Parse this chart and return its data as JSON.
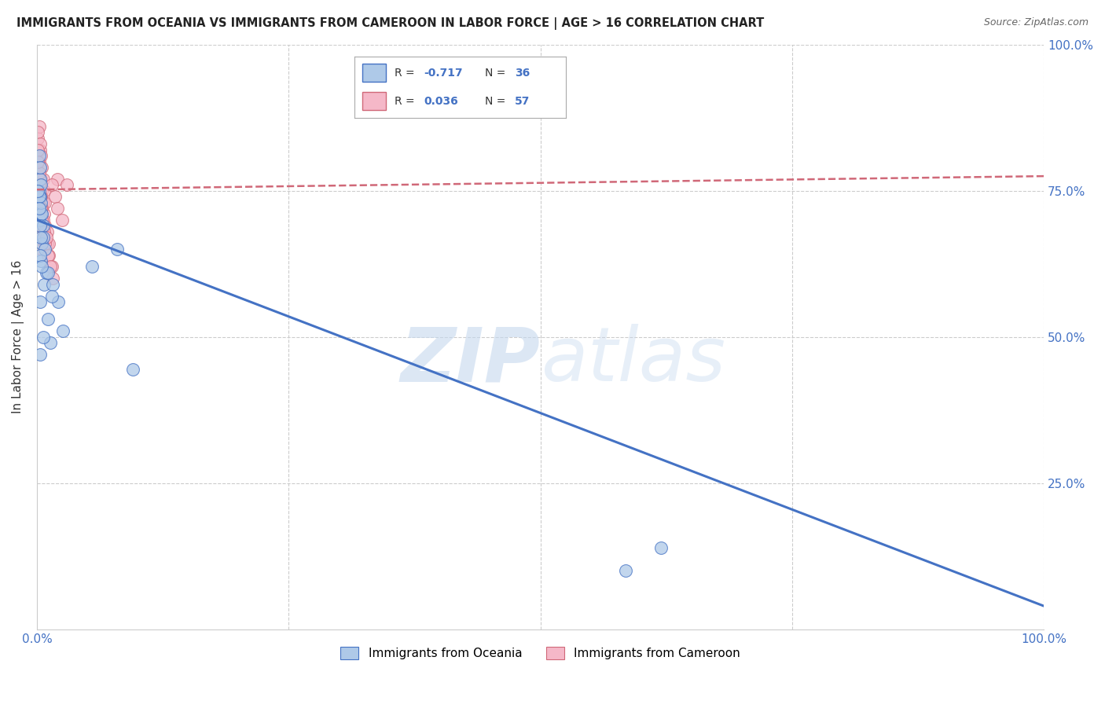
{
  "title": "IMMIGRANTS FROM OCEANIA VS IMMIGRANTS FROM CAMEROON IN LABOR FORCE | AGE > 16 CORRELATION CHART",
  "source": "Source: ZipAtlas.com",
  "ylabel": "In Labor Force | Age > 16",
  "legend_label_blue": "Immigrants from Oceania",
  "legend_label_pink": "Immigrants from Cameroon",
  "blue_R": -0.717,
  "blue_N": 36,
  "pink_R": 0.036,
  "pink_N": 57,
  "blue_color": "#aec9e8",
  "pink_color": "#f5b8c8",
  "blue_line_color": "#4472c4",
  "pink_line_color": "#d06878",
  "blue_scatter": {
    "x": [
      0.002,
      0.003,
      0.004,
      0.002,
      0.003,
      0.005,
      0.004,
      0.006,
      0.007,
      0.003,
      0.009,
      0.011,
      0.013,
      0.016,
      0.021,
      0.026,
      0.002,
      0.004,
      0.003,
      0.005,
      0.006,
      0.008,
      0.011,
      0.015,
      0.004,
      0.003,
      0.002,
      0.004,
      0.003,
      0.005,
      0.055,
      0.08,
      0.001,
      0.002,
      0.003,
      0.006
    ],
    "y": [
      0.7,
      0.74,
      0.71,
      0.75,
      0.77,
      0.66,
      0.63,
      0.69,
      0.59,
      0.56,
      0.61,
      0.53,
      0.49,
      0.59,
      0.56,
      0.51,
      0.81,
      0.76,
      0.79,
      0.71,
      0.67,
      0.65,
      0.61,
      0.57,
      0.73,
      0.69,
      0.74,
      0.67,
      0.64,
      0.62,
      0.62,
      0.65,
      0.75,
      0.72,
      0.47,
      0.5
    ]
  },
  "pink_scatter": {
    "x": [
      0.001,
      0.002,
      0.003,
      0.001,
      0.002,
      0.003,
      0.004,
      0.001,
      0.002,
      0.003,
      0.005,
      0.006,
      0.007,
      0.008,
      0.01,
      0.012,
      0.015,
      0.02,
      0.003,
      0.004,
      0.002,
      0.001,
      0.003,
      0.004,
      0.005,
      0.006,
      0.001,
      0.002,
      0.003,
      0.004,
      0.005,
      0.007,
      0.008,
      0.01,
      0.012,
      0.015,
      0.002,
      0.003,
      0.001,
      0.004,
      0.005,
      0.006,
      0.002,
      0.001,
      0.003,
      0.007,
      0.008,
      0.004,
      0.005,
      0.009,
      0.011,
      0.013,
      0.016,
      0.018,
      0.02,
      0.025,
      0.03
    ],
    "y": [
      0.78,
      0.8,
      0.82,
      0.76,
      0.74,
      0.72,
      0.7,
      0.84,
      0.86,
      0.68,
      0.75,
      0.73,
      0.71,
      0.69,
      0.66,
      0.64,
      0.62,
      0.77,
      0.79,
      0.77,
      0.75,
      0.85,
      0.83,
      0.81,
      0.79,
      0.77,
      0.73,
      0.71,
      0.69,
      0.67,
      0.65,
      0.75,
      0.73,
      0.68,
      0.66,
      0.76,
      0.78,
      0.76,
      0.82,
      0.74,
      0.72,
      0.7,
      0.76,
      0.8,
      0.74,
      0.68,
      0.66,
      0.72,
      0.7,
      0.67,
      0.64,
      0.62,
      0.6,
      0.74,
      0.72,
      0.7,
      0.76
    ]
  },
  "blue_outliers": {
    "x": [
      0.62,
      0.585,
      0.095
    ],
    "y": [
      0.14,
      0.1,
      0.445
    ]
  },
  "blue_line": {
    "x0": 0.0,
    "y0": 0.7,
    "x1": 1.0,
    "y1": 0.04
  },
  "pink_line": {
    "x0": 0.0,
    "y0": 0.752,
    "x1": 1.0,
    "y1": 0.775
  },
  "xlim": [
    0.0,
    1.0
  ],
  "ylim": [
    0.0,
    1.0
  ],
  "ytick_right_vals": [
    0.25,
    0.5,
    0.75,
    1.0
  ],
  "ytick_right_labels": [
    "25.0%",
    "50.0%",
    "75.0%",
    "100.0%"
  ],
  "xtick_vals": [
    0.0,
    1.0
  ],
  "xtick_labels": [
    "0.0%",
    "100.0%"
  ],
  "watermark_zip": "ZIP",
  "watermark_atlas": "atlas",
  "background_color": "#ffffff",
  "grid_color": "#cccccc",
  "tick_color": "#4472c4"
}
